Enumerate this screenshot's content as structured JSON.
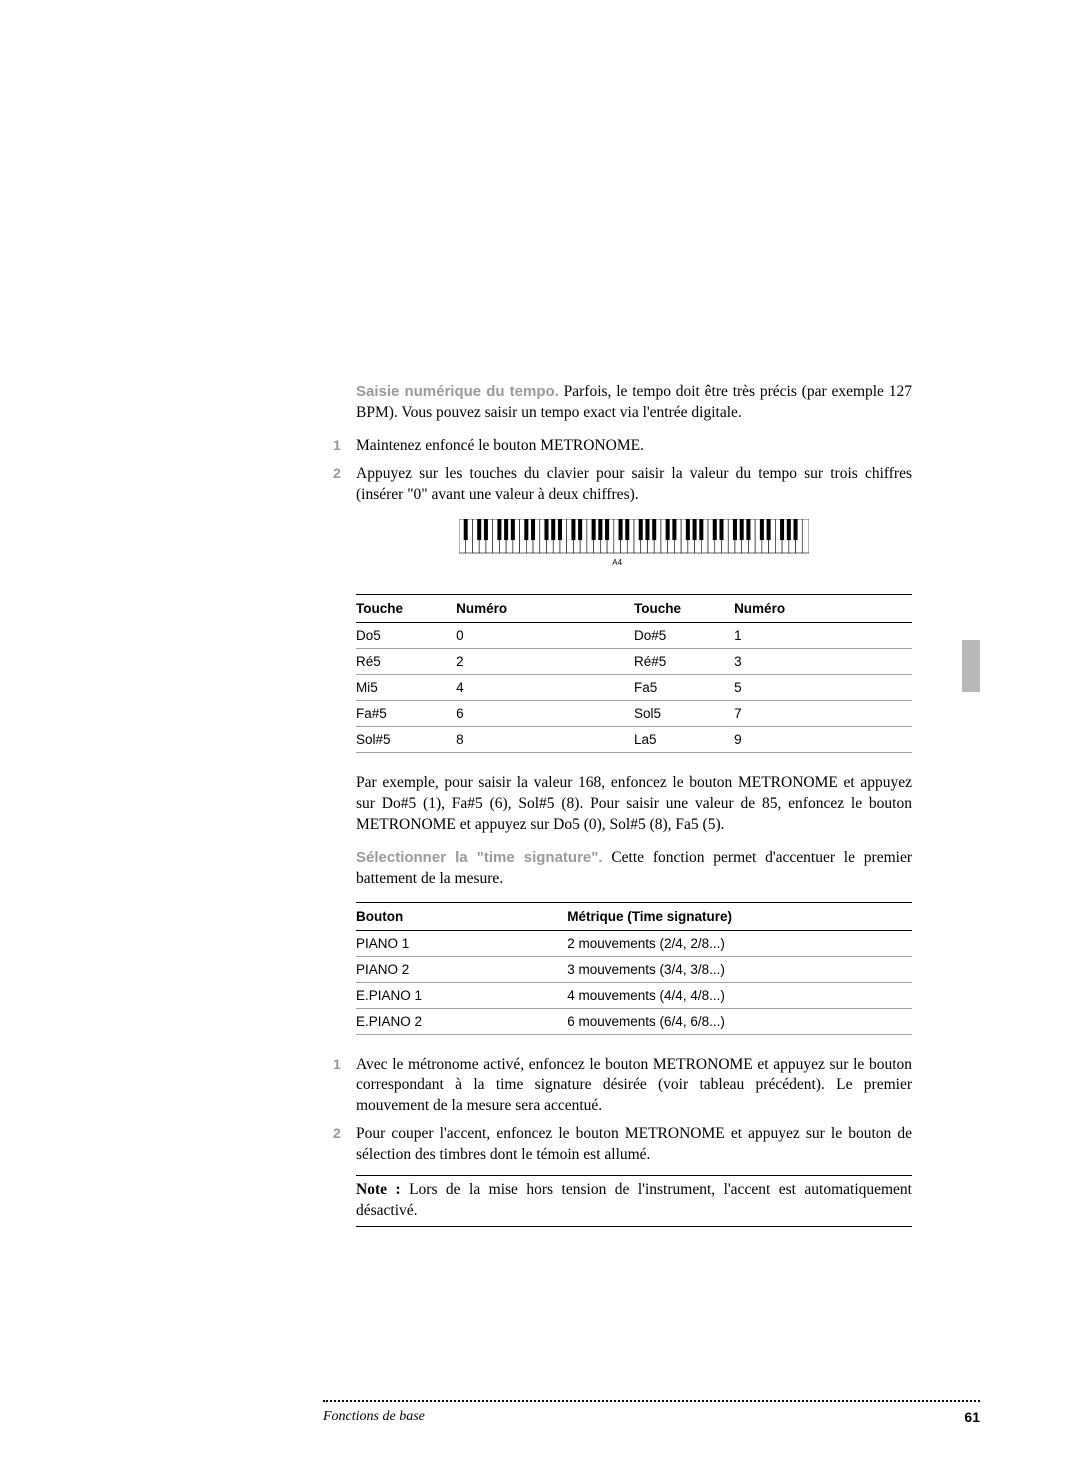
{
  "colors": {
    "text": "#000000",
    "lead_gray": "#9a9a9a",
    "row_border": "#a0a0a0",
    "tab_gray": "#b8b8b8",
    "background": "#ffffff"
  },
  "fonts": {
    "body_family": "serif",
    "body_size_pt": 12,
    "sans_family": "Arial",
    "table_size_pt": 10,
    "lead_weight": "bold"
  },
  "keyboard": {
    "total_white_keys": 52,
    "label_key_index": 23,
    "label_text": "A4",
    "white_key_color": "#ffffff",
    "black_key_color": "#000000",
    "outline_color": "#000000"
  },
  "intro": {
    "lead": "Saisie numérique du tempo.",
    "text": " Parfois, le tempo doit être très précis (par exemple 127 BPM). Vous pouvez saisir un tempo exact via l'entrée digitale."
  },
  "steps_a": [
    "Maintenez enfoncé le bouton METRONOME.",
    "Appuyez sur les touches du clavier pour saisir la valeur du tempo sur trois chiffres (insérer \"0\" avant une valeur à deux chiffres)."
  ],
  "table1": {
    "headers": [
      "Touche",
      "Numéro",
      "Touche",
      "Numéro"
    ],
    "rows": [
      [
        "Do5",
        "0",
        "Do#5",
        "1"
      ],
      [
        "Ré5",
        "2",
        "Ré#5",
        "3"
      ],
      [
        "Mi5",
        "4",
        "Fa5",
        "5"
      ],
      [
        "Fa#5",
        "6",
        "Sol5",
        "7"
      ],
      [
        "Sol#5",
        "8",
        "La5",
        "9"
      ]
    ]
  },
  "example_para": "Par exemple, pour saisir la valeur 168, enfoncez le bouton METRONOME et appuyez sur Do#5 (1), Fa#5 (6), Sol#5 (8). Pour saisir une valeur de 85, enfoncez le bouton METRONOME et appuyez sur Do5 (0), Sol#5 (8), Fa5 (5).",
  "timesig": {
    "lead": "Sélectionner la \"time signature\".",
    "text": " Cette fonction permet d'accentuer le premier battement de la mesure."
  },
  "table2": {
    "headers": [
      "Bouton",
      "Métrique (Time signature)"
    ],
    "rows": [
      [
        "PIANO 1",
        "2 mouvements (2/4, 2/8...)"
      ],
      [
        "PIANO 2",
        "3 mouvements (3/4, 3/8...)"
      ],
      [
        "E.PIANO 1",
        "4 mouvements (4/4, 4/8...)"
      ],
      [
        "E.PIANO 2",
        "6 mouvements (6/4, 6/8...)"
      ]
    ]
  },
  "steps_b": [
    "Avec le métronome activé, enfoncez le bouton METRONOME et appuyez sur le bouton correspondant à la time signature désirée (voir tableau précédent). Le premier mouvement de la mesure sera accentué.",
    "Pour couper l'accent, enfoncez le bouton METRONOME et appuyez sur le bouton de sélection des timbres dont le témoin est allumé."
  ],
  "note": {
    "lead": "Note :",
    "text": " Lors de la mise hors tension de l'instrument, l'accent est automatiquement désactivé."
  },
  "footer": {
    "section": "Fonctions de base",
    "page": "61"
  }
}
